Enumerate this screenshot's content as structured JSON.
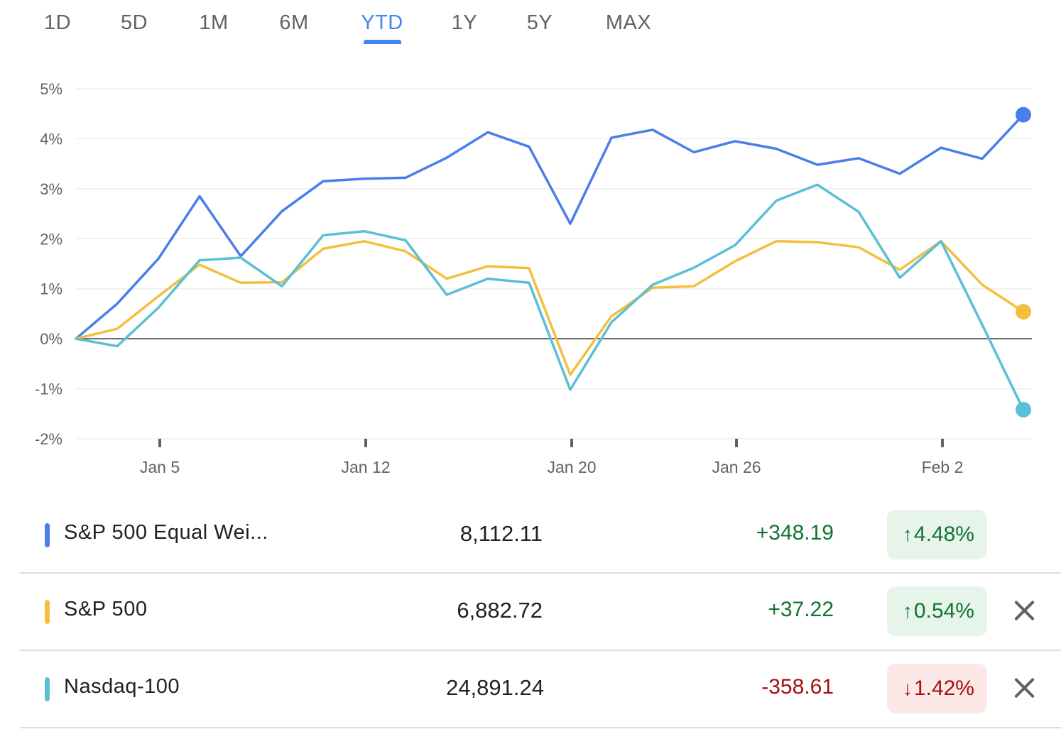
{
  "tabs": [
    {
      "label": "1D",
      "active": false
    },
    {
      "label": "5D",
      "active": false
    },
    {
      "label": "1M",
      "active": false
    },
    {
      "label": "6M",
      "active": false
    },
    {
      "label": "YTD",
      "active": true
    },
    {
      "label": "1Y",
      "active": false
    },
    {
      "label": "5Y",
      "active": false
    },
    {
      "label": "MAX",
      "active": false
    }
  ],
  "chart_data": {
    "type": "line",
    "yticks": [
      "5%",
      "4%",
      "3%",
      "2%",
      "1%",
      "0%",
      "-1%",
      "-2%"
    ],
    "ytick_values": [
      5,
      4,
      3,
      2,
      1,
      0,
      -1,
      -2
    ],
    "ylim": [
      -2,
      5
    ],
    "xticks": [
      {
        "label": "Jan 5",
        "index": 2
      },
      {
        "label": "Jan 12",
        "index": 7
      },
      {
        "label": "Jan 20",
        "index": 12
      },
      {
        "label": "Jan 26",
        "index": 16
      },
      {
        "label": "Feb 2",
        "index": 21
      }
    ],
    "points": 24,
    "baseline": 0,
    "grid": true,
    "series": [
      {
        "name": "S&P 500 Equal Wei...",
        "color": "#4a7fea",
        "values": [
          0,
          0.7,
          1.6,
          2.85,
          1.65,
          2.55,
          3.15,
          3.2,
          3.22,
          3.62,
          4.13,
          3.84,
          2.3,
          4.02,
          4.18,
          3.73,
          3.95,
          3.8,
          3.48,
          3.61,
          3.3,
          3.82,
          3.6,
          4.48
        ]
      },
      {
        "name": "S&P 500",
        "color": "#f4bf3f",
        "values": [
          0,
          0.2,
          0.85,
          1.48,
          1.12,
          1.13,
          1.8,
          1.95,
          1.75,
          1.2,
          1.45,
          1.41,
          -0.72,
          0.45,
          1.02,
          1.05,
          1.55,
          1.95,
          1.93,
          1.83,
          1.38,
          1.95,
          1.08,
          0.54
        ]
      },
      {
        "name": "Nasdaq-100",
        "color": "#5bbfd6",
        "values": [
          0,
          -0.15,
          0.62,
          1.57,
          1.62,
          1.05,
          2.07,
          2.15,
          1.97,
          0.88,
          1.2,
          1.12,
          -1.02,
          0.33,
          1.08,
          1.42,
          1.87,
          2.76,
          3.08,
          2.54,
          1.22,
          1.95,
          0.28,
          -1.42
        ]
      }
    ]
  },
  "rows": [
    {
      "name": "S&P 500 Equal Wei...",
      "color": "#4a7fea",
      "price": "8,112.11",
      "change": "+348.19",
      "direction": "up",
      "arrow": "↑",
      "percent": "4.48%",
      "removable": false
    },
    {
      "name": "S&P 500",
      "color": "#f4bf3f",
      "price": "6,882.72",
      "change": "+37.22",
      "direction": "up",
      "arrow": "↑",
      "percent": "0.54%",
      "removable": true
    },
    {
      "name": "Nasdaq-100",
      "color": "#5bbfd6",
      "price": "24,891.24",
      "change": "-358.61",
      "direction": "down",
      "arrow": "↓",
      "percent": "1.42%",
      "removable": true
    }
  ],
  "icons": {
    "remove": "close-icon",
    "up": "arrow-up-icon",
    "down": "arrow-down-icon"
  }
}
